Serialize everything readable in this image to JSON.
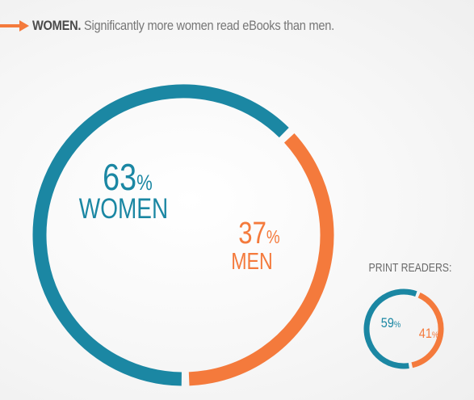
{
  "header": {
    "title_bold": "WOMEN.",
    "title_rest": " Significantly more women read eBooks than men."
  },
  "colors": {
    "teal": "#1b87a3",
    "orange": "#f47a3c",
    "arrow": "#f47a3c"
  },
  "chart_data": [
    {
      "type": "pie",
      "title": "",
      "style": "donut",
      "slices": [
        {
          "label": "WOMEN",
          "value": 63,
          "value_label": "63",
          "unit": "%",
          "color": "#1b87a3"
        },
        {
          "label": "MEN",
          "value": 37,
          "value_label": "37",
          "unit": "%",
          "color": "#f47a3c"
        }
      ]
    },
    {
      "type": "pie",
      "title": "PRINT READERS:",
      "style": "donut",
      "slices": [
        {
          "label": "",
          "value": 59,
          "value_label": "59",
          "unit": "%",
          "color": "#1b87a3"
        },
        {
          "label": "",
          "value": 41,
          "value_label": "41",
          "unit": "%",
          "color": "#f47a3c"
        }
      ]
    }
  ]
}
